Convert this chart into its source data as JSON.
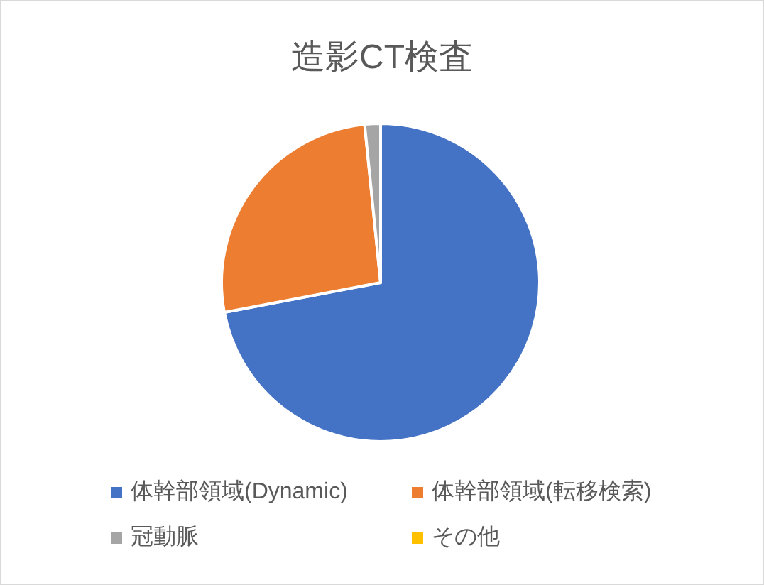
{
  "chart_data": {
    "type": "pie",
    "title": "造影CT検査",
    "categories": [
      "体幹部領域(Dynamic)",
      "体幹部領域(転移検索)",
      "冠動脈",
      "その他"
    ],
    "values": [
      72,
      26.4,
      1.6,
      0
    ],
    "colors": [
      "#4472c4",
      "#ed7d31",
      "#a5a5a5",
      "#ffc000"
    ],
    "legend": "bottom"
  }
}
